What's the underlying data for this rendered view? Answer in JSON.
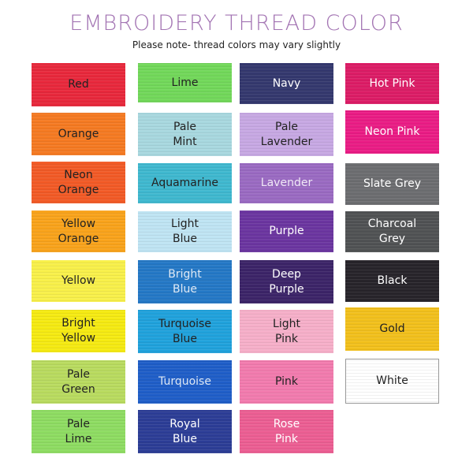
{
  "header": {
    "title": "EMBROIDERY THREAD COLOR",
    "subtitle": "Please note- thread colors may vary slightly"
  },
  "columns": [
    [
      {
        "label": "Red",
        "color": "#e8283c",
        "text": "#222"
      },
      {
        "label": "Orange",
        "color": "#f57a22",
        "text": "#222"
      },
      {
        "label": "Neon\nOrange",
        "color": "#f25a26",
        "text": "#222"
      },
      {
        "label": "Yellow\nOrange",
        "color": "#f9a31b",
        "text": "#222"
      },
      {
        "label": "Yellow",
        "color": "#f8f04a",
        "text": "#222"
      },
      {
        "label": "Bright\nYellow",
        "color": "#f5ea12",
        "text": "#222"
      },
      {
        "label": "Pale\nGreen",
        "color": "#b9db5f",
        "text": "#222"
      },
      {
        "label": "Pale\nLime",
        "color": "#8edc62",
        "text": "#222"
      }
    ],
    [
      {
        "label": "Lime",
        "color": "#72d85a",
        "text": "#222"
      },
      {
        "label": "Pale\nMint",
        "color": "#a8d8df",
        "text": "#222"
      },
      {
        "label": "Aquamarine",
        "color": "#3fb8cf",
        "text": "#222"
      },
      {
        "label": "Light\nBlue",
        "color": "#bfe4f3",
        "text": "#222"
      },
      {
        "label": "Bright\nBlue",
        "color": "#2478c6",
        "text": "#dfe9f5"
      },
      {
        "label": "Turquoise\nBlue",
        "color": "#20a2dc",
        "text": "#222"
      },
      {
        "label": "Turquoise",
        "color": "#1f5ec8",
        "text": "#dfe9f5"
      },
      {
        "label": "Royal\nBlue",
        "color": "#2c3d96",
        "text": "#fff"
      }
    ],
    [
      {
        "label": "Navy",
        "color": "#34386e",
        "text": "#fff"
      },
      {
        "label": "Pale\nLavender",
        "color": "#c7a8e3",
        "text": "#222"
      },
      {
        "label": "Lavender",
        "color": "#9a6ac2",
        "text": "#f0e8f6"
      },
      {
        "label": "Purple",
        "color": "#6b35a0",
        "text": "#fff"
      },
      {
        "label": "Deep\nPurple",
        "color": "#3c2468",
        "text": "#fff"
      },
      {
        "label": "Light\nPink",
        "color": "#f6afc9",
        "text": "#222"
      },
      {
        "label": "Pink",
        "color": "#f27bae",
        "text": "#222"
      },
      {
        "label": "Rose\nPink",
        "color": "#ec5e93",
        "text": "#fff"
      }
    ],
    [
      {
        "label": "Hot Pink",
        "color": "#dc1c66",
        "text": "#fff"
      },
      {
        "label": "Neon Pink",
        "color": "#ea1c85",
        "text": "#fff"
      },
      {
        "label": "Slate Grey",
        "color": "#6c6d70",
        "text": "#fff"
      },
      {
        "label": "Charcoal\nGrey",
        "color": "#505254",
        "text": "#fff"
      },
      {
        "label": "Black",
        "color": "#27242a",
        "text": "#fff"
      },
      {
        "label": "Gold",
        "color": "#f2c01c",
        "text": "#222"
      },
      {
        "label": "White",
        "color": "#ffffff",
        "text": "#222"
      }
    ]
  ]
}
